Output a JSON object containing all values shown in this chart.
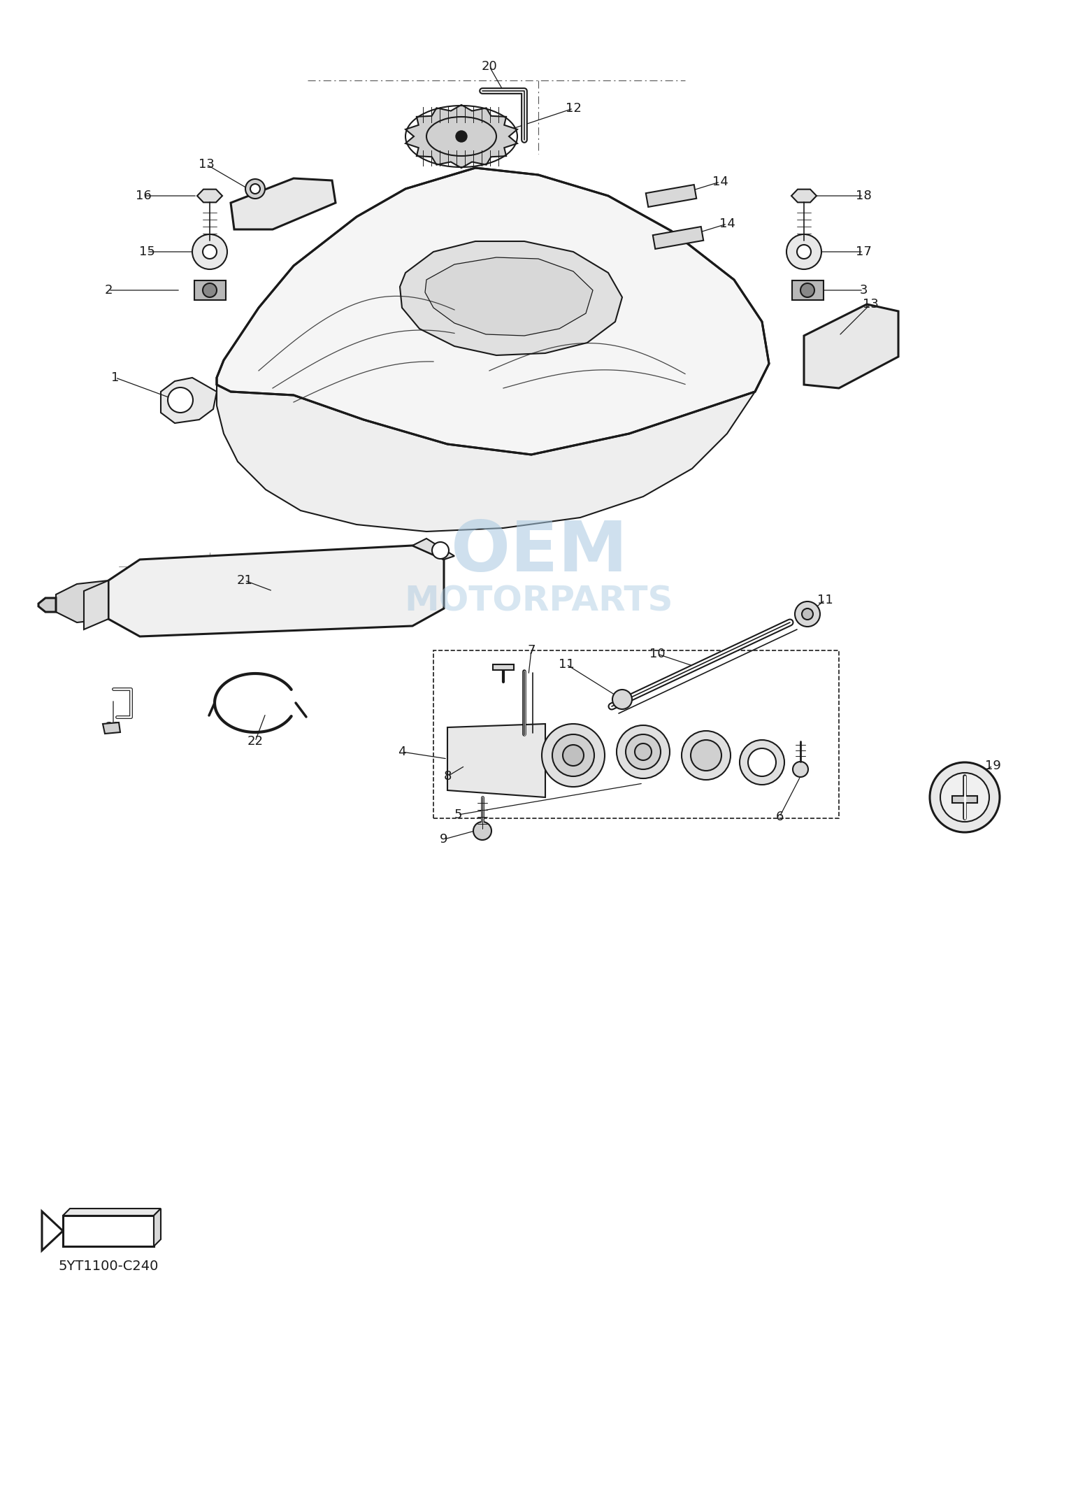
{
  "bg_color": "#ffffff",
  "line_color": "#1a1a1a",
  "label_color": "#1a1a1a",
  "watermark_color_oem": "#a8c8e0",
  "watermark_color_motor": "#a8c8e0",
  "part_code": "5YT1100-C240",
  "label_fontsize": 13,
  "title_fontsize": 11,
  "figsize": [
    15.42,
    21.29
  ],
  "dpi": 100
}
